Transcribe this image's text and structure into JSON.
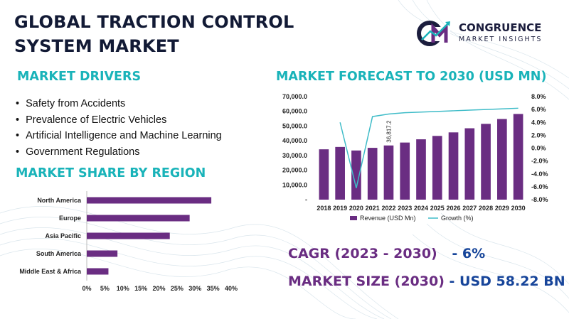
{
  "title": "GLOBAL TRACTION CONTROL SYSTEM MARKET",
  "logo": {
    "name": "CONGRUENCE",
    "tagline": "MARKET INSIGHTS"
  },
  "drivers": {
    "heading": "MARKET DRIVERS",
    "items": [
      "Safety from Accidents",
      "Prevalence of Electric Vehicles",
      "Artificial Intelligence and Machine Learning",
      "Government Regulations"
    ]
  },
  "region": {
    "heading": "MARKET SHARE BY REGION"
  },
  "forecast": {
    "heading": "MARKET FORECAST TO 2030 (USD MN)"
  },
  "stats": {
    "cagr_label": "CAGR (2023 - 2030)",
    "cagr_value": "- 6%",
    "size_label": "MARKET SIZE (2030)",
    "size_value": "- USD 58.22 BN"
  },
  "colors": {
    "bar": "#6a2d82",
    "line": "#3fbcc8",
    "heading": "#19b3b9",
    "title": "#121a35"
  },
  "chart_data": [
    {
      "type": "bar",
      "orientation": "horizontal",
      "categories": [
        "North America",
        "Europe",
        "Asia Pacific",
        "South America",
        "Middle East & Africa"
      ],
      "values": [
        34.5,
        28.5,
        23.0,
        8.5,
        6.0
      ],
      "xticks": [
        "0%",
        "5%",
        "10%",
        "15%",
        "20%",
        "25%",
        "30%",
        "35%",
        "40%"
      ],
      "xlim": [
        0,
        40
      ],
      "grid": false
    },
    {
      "type": "bar",
      "categories": [
        "2018",
        "2019",
        "2020",
        "2021",
        "2022",
        "2023",
        "2024",
        "2025",
        "2026",
        "2027",
        "2028",
        "2029",
        "2030"
      ],
      "series": [
        {
          "name": "Revenue (USD Mn)",
          "type": "bar",
          "axis": "left",
          "values": [
            34200,
            35800,
            33400,
            35200,
            36817.2,
            38800,
            41000,
            43300,
            45700,
            48500,
            51500,
            54800,
            58220
          ]
        },
        {
          "name": "Growth (%)",
          "type": "line",
          "axis": "right",
          "values": [
            null,
            4.0,
            -6.2,
            4.9,
            5.3,
            5.5,
            5.6,
            5.7,
            5.8,
            5.9,
            6.0,
            6.1,
            6.2
          ]
        }
      ],
      "data_labels": [
        {
          "index": 4,
          "text": "36,817.2"
        }
      ],
      "ylim": [
        0,
        70000
      ],
      "yticks": [
        "-",
        "10,000.0",
        "20,000.0",
        "30,000.0",
        "40,000.0",
        "50,000.0",
        "60,000.0",
        "70,000.0"
      ],
      "y2lim": [
        -8,
        8
      ],
      "y2ticks": [
        "-8.0%",
        "-6.0%",
        "-4.0%",
        "-2.0%",
        "0.0%",
        "2.0%",
        "4.0%",
        "6.0%",
        "8.0%"
      ],
      "legend": "bottom",
      "grid": false
    }
  ]
}
